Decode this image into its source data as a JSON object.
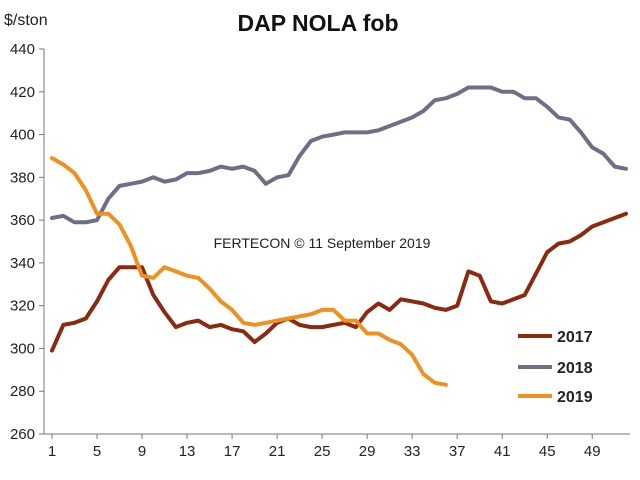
{
  "chart_data": {
    "type": "line",
    "title": "DAP NOLA fob",
    "ylabel": "$/ston",
    "xlabel": "",
    "annotation": "FERTECON © 11 September 2019",
    "xlim": [
      1,
      52
    ],
    "ylim": [
      260,
      440
    ],
    "x_ticks": [
      1,
      5,
      9,
      13,
      17,
      21,
      25,
      29,
      33,
      37,
      41,
      45,
      49
    ],
    "y_ticks": [
      260,
      280,
      300,
      320,
      340,
      360,
      380,
      400,
      420,
      440
    ],
    "grid": false,
    "legend_position": "bottom-right",
    "series": [
      {
        "name": "2017",
        "color": "#8B2A0E",
        "x": [
          1,
          2,
          3,
          4,
          5,
          6,
          7,
          8,
          9,
          10,
          11,
          12,
          13,
          14,
          15,
          16,
          17,
          18,
          19,
          20,
          21,
          22,
          23,
          24,
          25,
          26,
          27,
          28,
          29,
          30,
          31,
          32,
          33,
          34,
          35,
          36,
          37,
          38,
          39,
          40,
          41,
          42,
          43,
          44,
          45,
          46,
          47,
          48,
          49,
          50,
          51,
          52
        ],
        "values": [
          299,
          311,
          312,
          314,
          322,
          332,
          338,
          338,
          338,
          325,
          317,
          310,
          312,
          313,
          310,
          311,
          309,
          308,
          303,
          307,
          312,
          314,
          311,
          310,
          310,
          311,
          312,
          310,
          317,
          321,
          318,
          323,
          322,
          321,
          319,
          318,
          320,
          336,
          334,
          322,
          321,
          323,
          325,
          335,
          345,
          349,
          350,
          353,
          357,
          359,
          361,
          363
        ]
      },
      {
        "name": "2018",
        "color": "#6E6E86",
        "x": [
          1,
          2,
          3,
          4,
          5,
          6,
          7,
          8,
          9,
          10,
          11,
          12,
          13,
          14,
          15,
          16,
          17,
          18,
          19,
          20,
          21,
          22,
          23,
          24,
          25,
          26,
          27,
          28,
          29,
          30,
          31,
          32,
          33,
          34,
          35,
          36,
          37,
          38,
          39,
          40,
          41,
          42,
          43,
          44,
          45,
          46,
          47,
          48,
          49,
          50,
          51,
          52
        ],
        "values": [
          361,
          362,
          359,
          359,
          360,
          370,
          376,
          377,
          378,
          380,
          378,
          379,
          382,
          382,
          383,
          385,
          384,
          385,
          383,
          377,
          380,
          381,
          390,
          397,
          399,
          400,
          401,
          401,
          401,
          402,
          404,
          406,
          408,
          411,
          416,
          417,
          419,
          422,
          422,
          422,
          420,
          420,
          417,
          417,
          413,
          408,
          407,
          401,
          394,
          391,
          385,
          384
        ]
      },
      {
        "name": "2019",
        "color": "#F0901E",
        "x": [
          1,
          2,
          3,
          4,
          5,
          6,
          7,
          8,
          9,
          10,
          11,
          12,
          13,
          14,
          15,
          16,
          17,
          18,
          19,
          20,
          21,
          22,
          23,
          24,
          25,
          26,
          27,
          28,
          29,
          30,
          31,
          32,
          33,
          34,
          35,
          36
        ],
        "values": [
          389,
          386,
          382,
          374,
          363,
          363,
          358,
          348,
          334,
          333,
          338,
          336,
          334,
          333,
          328,
          322,
          318,
          312,
          311,
          312,
          313,
          314,
          315,
          316,
          318,
          318,
          313,
          313,
          307,
          307,
          304,
          302,
          297,
          288,
          284,
          283
        ]
      }
    ]
  }
}
